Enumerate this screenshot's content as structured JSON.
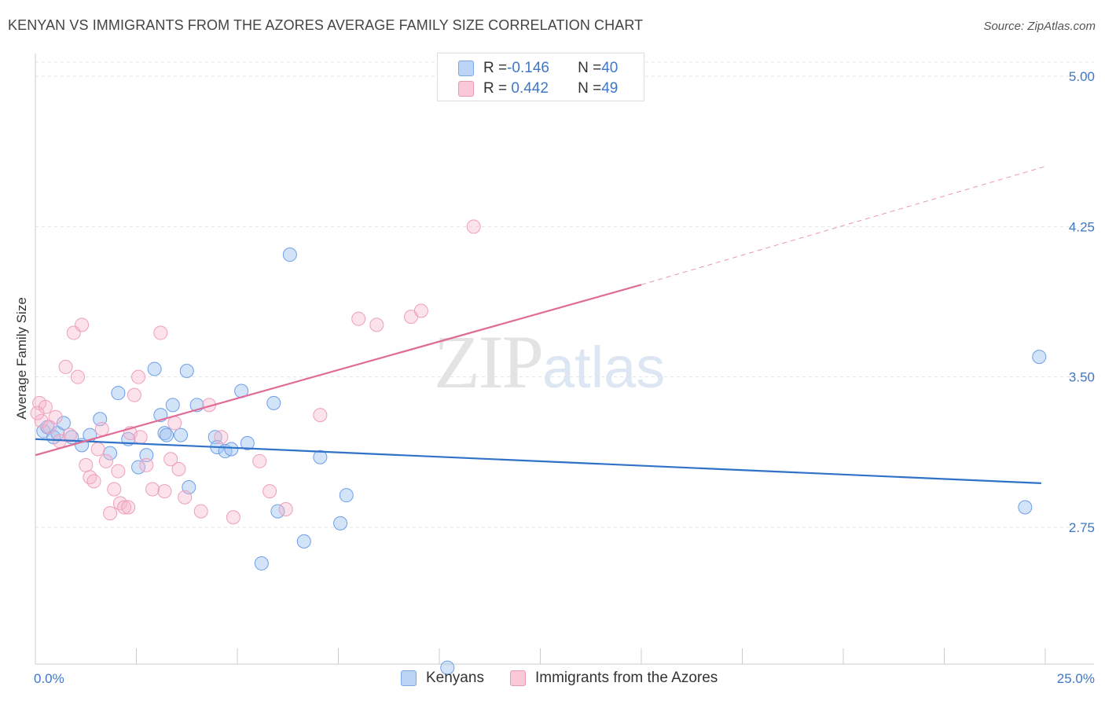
{
  "title": "KENYAN VS IMMIGRANTS FROM THE AZORES AVERAGE FAMILY SIZE CORRELATION CHART",
  "source": "Source: ZipAtlas.com",
  "watermark": {
    "zip": "ZIP",
    "atlas": "atlas"
  },
  "legend": {
    "rows": [
      {
        "r_label": "R = ",
        "r_value": "-0.146",
        "n_label": "N = ",
        "n_value": "40"
      },
      {
        "r_label": "R = ",
        "r_value": " 0.442",
        "n_label": "N = ",
        "n_value": "49"
      }
    ]
  },
  "bottom_legend": [
    "Kenyans",
    "Immigrants from the Azores"
  ],
  "chart_data": {
    "type": "scatter",
    "title": "KENYAN VS IMMIGRANTS FROM THE AZORES AVERAGE FAMILY SIZE CORRELATION CHART",
    "xlabel": "",
    "ylabel": "Average Family Size",
    "xlim": [
      0,
      25
    ],
    "ylim": [
      2.02,
      5.1
    ],
    "x_tick_labels": [
      "0.0%",
      "25.0%"
    ],
    "y_ticks": [
      2.75,
      3.5,
      4.25,
      5.0
    ],
    "y_tick_labels": [
      "2.75",
      "3.50",
      "4.25",
      "5.00"
    ],
    "grid": "horizontal dashed",
    "legend_position": "top-center",
    "colors": {
      "kenyans": "#6d9eea",
      "azores": "#f0a0bc",
      "kenyans_line": "#2f72c8",
      "azores_line": "#e06b95"
    },
    "series": [
      {
        "name": "Kenyans",
        "r": -0.146,
        "n": 40,
        "trend": {
          "x": [
            0.0,
            24.9
          ],
          "y": [
            3.19,
            2.97
          ]
        },
        "points": [
          [
            0.2,
            3.23
          ],
          [
            0.3,
            3.25
          ],
          [
            0.45,
            3.2
          ],
          [
            0.55,
            3.22
          ],
          [
            0.7,
            3.27
          ],
          [
            0.9,
            3.2
          ],
          [
            1.15,
            3.16
          ],
          [
            1.35,
            3.21
          ],
          [
            1.6,
            3.29
          ],
          [
            1.85,
            3.12
          ],
          [
            2.05,
            3.42
          ],
          [
            2.3,
            3.19
          ],
          [
            2.55,
            3.05
          ],
          [
            2.75,
            3.11
          ],
          [
            2.95,
            3.54
          ],
          [
            3.1,
            3.31
          ],
          [
            3.2,
            3.22
          ],
          [
            3.25,
            3.21
          ],
          [
            3.4,
            3.36
          ],
          [
            3.6,
            3.21
          ],
          [
            3.75,
            3.53
          ],
          [
            3.8,
            2.95
          ],
          [
            4.0,
            3.36
          ],
          [
            4.45,
            3.2
          ],
          [
            4.5,
            3.15
          ],
          [
            4.7,
            3.13
          ],
          [
            4.85,
            3.14
          ],
          [
            5.1,
            3.43
          ],
          [
            5.25,
            3.17
          ],
          [
            5.6,
            2.57
          ],
          [
            5.9,
            3.37
          ],
          [
            6.0,
            2.83
          ],
          [
            6.3,
            4.11
          ],
          [
            6.65,
            2.68
          ],
          [
            7.05,
            3.1
          ],
          [
            7.55,
            2.77
          ],
          [
            7.7,
            2.91
          ],
          [
            10.2,
            2.05
          ],
          [
            24.5,
            2.85
          ],
          [
            24.85,
            3.6
          ]
        ]
      },
      {
        "name": "Immigrants from the Azores",
        "r": 0.442,
        "n": 49,
        "trend": {
          "x": [
            0.0,
            15.0
          ],
          "y": [
            3.11,
            3.96
          ]
        },
        "trend_extension": {
          "x": [
            15.0,
            25.0
          ],
          "y": [
            3.96,
            4.55
          ]
        },
        "points": [
          [
            0.1,
            3.37
          ],
          [
            0.15,
            3.28
          ],
          [
            0.25,
            3.35
          ],
          [
            0.35,
            3.25
          ],
          [
            0.5,
            3.3
          ],
          [
            0.6,
            3.18
          ],
          [
            0.75,
            3.55
          ],
          [
            0.85,
            3.21
          ],
          [
            0.95,
            3.72
          ],
          [
            1.05,
            3.5
          ],
          [
            1.15,
            3.76
          ],
          [
            1.25,
            3.06
          ],
          [
            1.35,
            3.0
          ],
          [
            1.45,
            2.98
          ],
          [
            1.55,
            3.14
          ],
          [
            1.65,
            3.24
          ],
          [
            1.75,
            3.08
          ],
          [
            1.85,
            2.82
          ],
          [
            1.95,
            2.94
          ],
          [
            2.05,
            3.03
          ],
          [
            2.1,
            2.87
          ],
          [
            2.2,
            2.85
          ],
          [
            2.3,
            2.85
          ],
          [
            2.35,
            3.22
          ],
          [
            2.45,
            3.41
          ],
          [
            2.55,
            3.5
          ],
          [
            2.6,
            3.2
          ],
          [
            2.75,
            3.06
          ],
          [
            2.9,
            2.94
          ],
          [
            3.1,
            3.72
          ],
          [
            3.2,
            2.93
          ],
          [
            3.35,
            3.09
          ],
          [
            3.45,
            3.27
          ],
          [
            3.55,
            3.04
          ],
          [
            3.7,
            2.9
          ],
          [
            4.1,
            2.83
          ],
          [
            4.3,
            3.36
          ],
          [
            4.6,
            3.2
          ],
          [
            4.9,
            2.8
          ],
          [
            5.55,
            3.08
          ],
          [
            5.8,
            2.93
          ],
          [
            6.2,
            2.84
          ],
          [
            7.05,
            3.31
          ],
          [
            8.0,
            3.79
          ],
          [
            8.45,
            3.76
          ],
          [
            9.3,
            3.8
          ],
          [
            9.55,
            3.83
          ],
          [
            10.85,
            4.25
          ],
          [
            0.05,
            3.32
          ]
        ]
      }
    ]
  }
}
